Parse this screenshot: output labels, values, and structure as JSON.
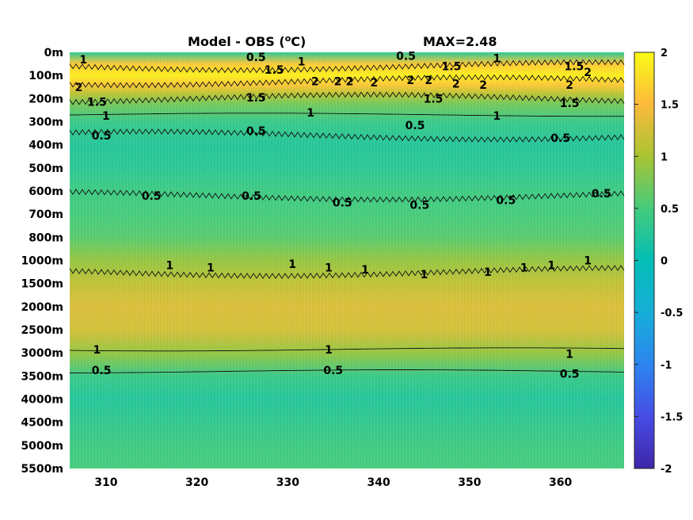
{
  "chart_data": {
    "type": "heatmap",
    "title": "Model - OBS (",
    "title_unit_sup": "o",
    "title_unit_tail": "C)",
    "max_label": "MAX=2.48",
    "x": {
      "ticks": [
        310,
        320,
        330,
        340,
        350,
        360
      ],
      "range": [
        306,
        367
      ]
    },
    "y": {
      "reversed": true,
      "ticks": [
        "0m",
        "100m",
        "200m",
        "300m",
        "400m",
        "500m",
        "600m",
        "700m",
        "800m",
        "1000m",
        "1500m",
        "2000m",
        "2500m",
        "3000m",
        "3500m",
        "4000m",
        "4500m",
        "5000m",
        "5500m"
      ]
    },
    "colorbar": {
      "range": [
        -2,
        2
      ],
      "ticks": [
        "2",
        "1.5",
        "1",
        "0.5",
        "0",
        "-0.5",
        "-1",
        "-1.5",
        "-2"
      ],
      "colormap": "parula"
    },
    "bands": [
      {
        "level": 0,
        "value": 0.3
      },
      {
        "level": 0.5,
        "value": 1.6
      },
      {
        "level": 1.0,
        "value": 1.9
      },
      {
        "level": 1.4,
        "value": 1.6
      },
      {
        "level": 1.8,
        "value": 1.1
      },
      {
        "level": 2.2,
        "value": 0.75
      },
      {
        "level": 3.0,
        "value": 0.4
      },
      {
        "level": 4.0,
        "value": 0.25
      },
      {
        "level": 5.0,
        "value": 0.3
      },
      {
        "level": 6.0,
        "value": 0.45
      },
      {
        "level": 7.0,
        "value": 0.5
      },
      {
        "level": 8.0,
        "value": 0.6
      },
      {
        "level": 9.0,
        "value": 0.9
      },
      {
        "level": 10.0,
        "value": 1.15
      },
      {
        "level": 11.0,
        "value": 1.3
      },
      {
        "level": 12.0,
        "value": 1.25
      },
      {
        "level": 13.0,
        "value": 0.9
      },
      {
        "level": 14.0,
        "value": 0.4
      },
      {
        "level": 15.0,
        "value": 0.25
      },
      {
        "level": 16.0,
        "value": 0.35
      },
      {
        "level": 17.0,
        "value": 0.45
      },
      {
        "level": 18.0,
        "value": 0.5
      }
    ],
    "contours": [
      {
        "value": "1.5",
        "level": 0.6,
        "wavy": true
      },
      {
        "value": "2",
        "level": 1.25,
        "wavy": true
      },
      {
        "value": "1.5",
        "level": 2.0,
        "wavy": true
      },
      {
        "value": "1",
        "level": 2.7,
        "wavy": false
      },
      {
        "value": "0.5",
        "level": 3.6,
        "wavy": true
      },
      {
        "value": "0.5",
        "level": 6.2,
        "wavy": true
      },
      {
        "value": "1",
        "level": 9.5,
        "wavy": true
      },
      {
        "value": "1",
        "level": 12.85,
        "wavy": false
      },
      {
        "value": "0.5",
        "level": 13.8,
        "wavy": false
      }
    ],
    "contour_labels": [
      {
        "text": "1",
        "x": 307.5,
        "level": 0.3
      },
      {
        "text": "0.5",
        "x": 326.5,
        "level": 0.2
      },
      {
        "text": "1.5",
        "x": 328.5,
        "level": 0.75
      },
      {
        "text": "1",
        "x": 331.5,
        "level": 0.4
      },
      {
        "text": "0.5",
        "x": 343.0,
        "level": 0.15
      },
      {
        "text": "1.5",
        "x": 348.0,
        "level": 0.6
      },
      {
        "text": "1",
        "x": 353.0,
        "level": 0.25
      },
      {
        "text": "1.5",
        "x": 361.5,
        "level": 0.6
      },
      {
        "text": "2",
        "x": 363.0,
        "level": 0.85
      },
      {
        "text": "2",
        "x": 307.0,
        "level": 1.5
      },
      {
        "text": "2",
        "x": 333.0,
        "level": 1.25
      },
      {
        "text": "2",
        "x": 335.5,
        "level": 1.25
      },
      {
        "text": "2",
        "x": 336.8,
        "level": 1.25
      },
      {
        "text": "2",
        "x": 339.5,
        "level": 1.3
      },
      {
        "text": "2",
        "x": 343.5,
        "level": 1.2
      },
      {
        "text": "2",
        "x": 345.5,
        "level": 1.2
      },
      {
        "text": "2",
        "x": 348.5,
        "level": 1.35
      },
      {
        "text": "2",
        "x": 351.5,
        "level": 1.4
      },
      {
        "text": "2",
        "x": 361.0,
        "level": 1.4
      },
      {
        "text": "1.5",
        "x": 309.0,
        "level": 2.15
      },
      {
        "text": "1.5",
        "x": 326.5,
        "level": 1.95
      },
      {
        "text": "1.5",
        "x": 346.0,
        "level": 2.0
      },
      {
        "text": "1.5",
        "x": 361.0,
        "level": 2.2
      },
      {
        "text": "1",
        "x": 310.0,
        "level": 2.75
      },
      {
        "text": "1",
        "x": 332.5,
        "level": 2.6
      },
      {
        "text": "1",
        "x": 353.0,
        "level": 2.75
      },
      {
        "text": "0.5",
        "x": 309.5,
        "level": 3.6
      },
      {
        "text": "0.5",
        "x": 326.5,
        "level": 3.4
      },
      {
        "text": "0.5",
        "x": 344.0,
        "level": 3.15
      },
      {
        "text": "0.5",
        "x": 360.0,
        "level": 3.7
      },
      {
        "text": "0.5",
        "x": 315.0,
        "level": 6.2
      },
      {
        "text": "0.5",
        "x": 326.0,
        "level": 6.2
      },
      {
        "text": "0.5",
        "x": 336.0,
        "level": 6.5
      },
      {
        "text": "0.5",
        "x": 344.5,
        "level": 6.6
      },
      {
        "text": "0.5",
        "x": 354.0,
        "level": 6.4
      },
      {
        "text": "0.5",
        "x": 364.5,
        "level": 6.1
      },
      {
        "text": "1",
        "x": 317.0,
        "level": 9.2
      },
      {
        "text": "1",
        "x": 321.5,
        "level": 9.3
      },
      {
        "text": "1",
        "x": 330.5,
        "level": 9.15
      },
      {
        "text": "1",
        "x": 334.5,
        "level": 9.3
      },
      {
        "text": "1",
        "x": 338.5,
        "level": 9.4
      },
      {
        "text": "1",
        "x": 345.0,
        "level": 9.6
      },
      {
        "text": "1",
        "x": 352.0,
        "level": 9.5
      },
      {
        "text": "1",
        "x": 356.0,
        "level": 9.3
      },
      {
        "text": "1",
        "x": 359.0,
        "level": 9.2
      },
      {
        "text": "1",
        "x": 363.0,
        "level": 9.0
      },
      {
        "text": "1",
        "x": 309.0,
        "level": 12.85
      },
      {
        "text": "1",
        "x": 334.5,
        "level": 12.85
      },
      {
        "text": "1",
        "x": 361.0,
        "level": 13.05
      },
      {
        "text": "0.5",
        "x": 309.5,
        "level": 13.75
      },
      {
        "text": "0.5",
        "x": 335.0,
        "level": 13.75
      },
      {
        "text": "0.5",
        "x": 361.0,
        "level": 13.9
      }
    ]
  }
}
